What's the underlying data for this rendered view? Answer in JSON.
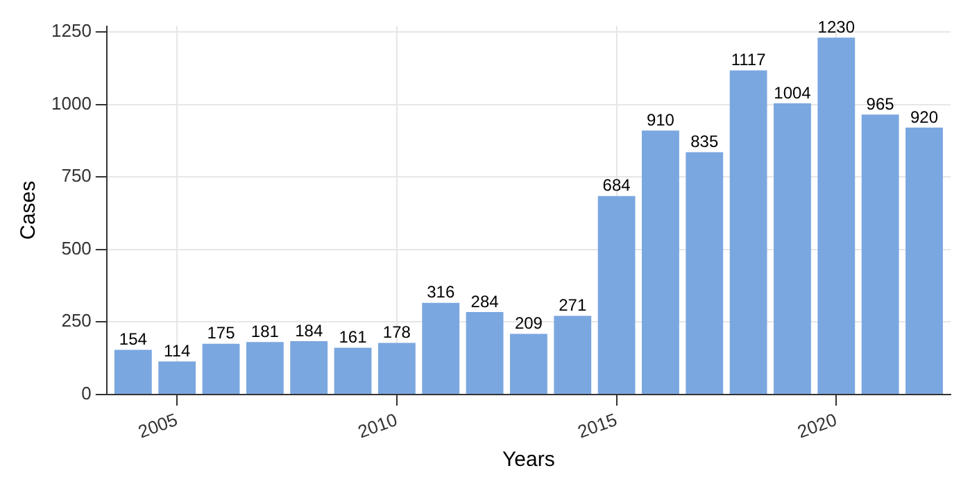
{
  "chart_data": {
    "type": "bar",
    "xlabel": "Years",
    "ylabel": "Cases",
    "x": [
      2004,
      2005,
      2006,
      2007,
      2008,
      2009,
      2010,
      2011,
      2012,
      2013,
      2014,
      2015,
      2016,
      2017,
      2018,
      2019,
      2020,
      2021,
      2022
    ],
    "values": [
      154,
      114,
      175,
      181,
      184,
      161,
      178,
      316,
      284,
      209,
      271,
      684,
      910,
      835,
      1117,
      1004,
      1230,
      965,
      920
    ],
    "color": "#7ba7e0",
    "xlim": [
      2003.4,
      2022.6
    ],
    "xticks": [
      2005,
      2010,
      2015,
      2020
    ],
    "ylim": [
      0,
      1270
    ],
    "yticks": [
      0,
      250,
      500,
      750,
      1000,
      1250
    ],
    "grid": true,
    "data_labels": true
  }
}
